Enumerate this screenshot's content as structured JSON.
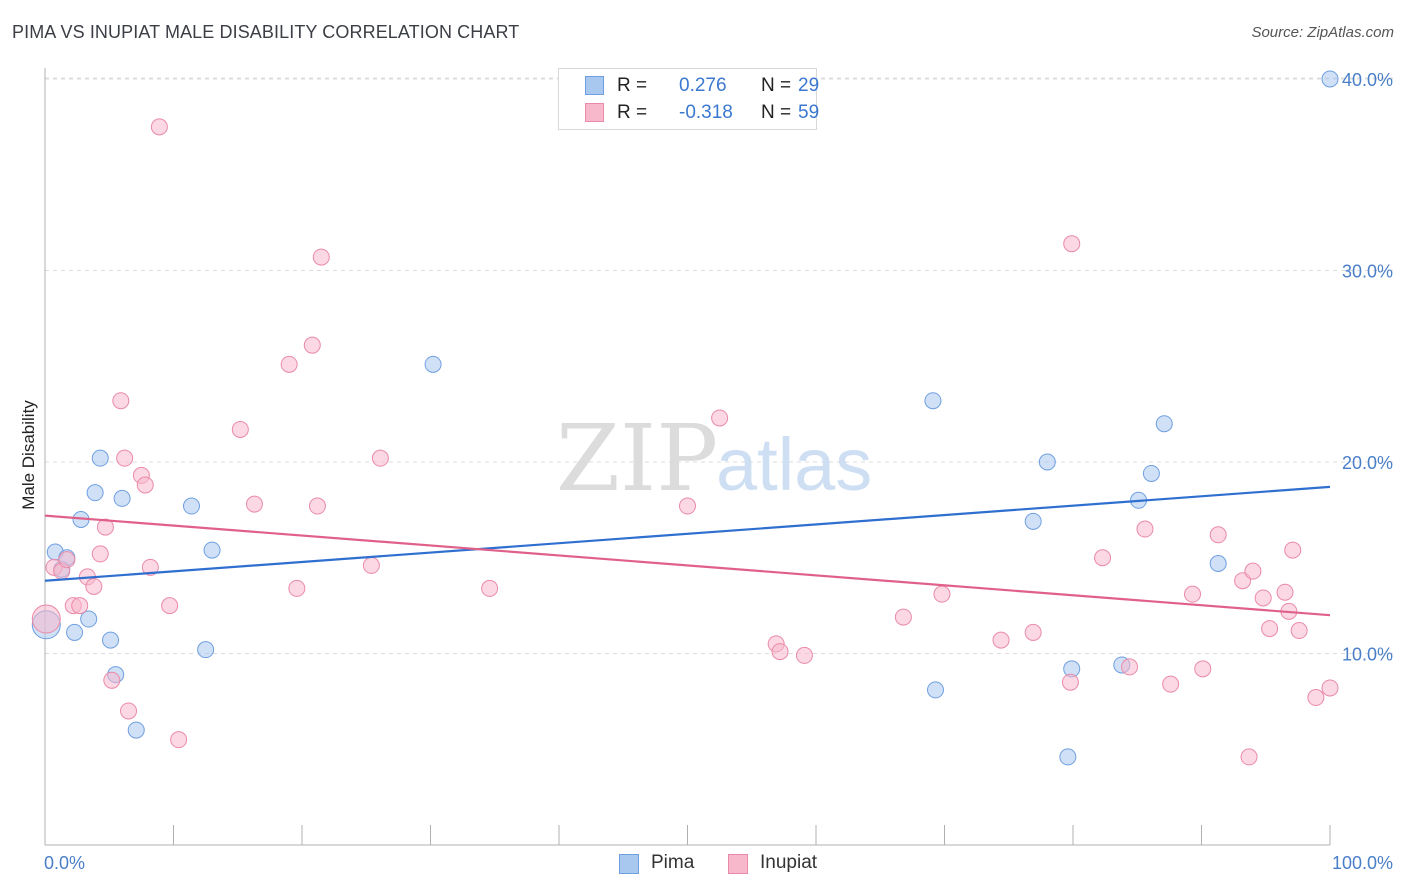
{
  "header": {
    "title": "PIMA VS INUPIAT MALE DISABILITY CORRELATION CHART",
    "source": "Source: ZipAtlas.com"
  },
  "stats": [
    {
      "r_label": "R =",
      "r_value": "0.276",
      "n_label": "N =",
      "n_value": "29",
      "color": "#a9c8f0"
    },
    {
      "r_label": "R =",
      "r_value": "-0.318",
      "n_label": "N =",
      "n_value": "59",
      "color": "#f7b8cc"
    }
  ],
  "watermark": {
    "zip": "ZIP",
    "atlas": "atlas"
  },
  "legend": {
    "pima": "Pima",
    "inupiat": "Inupiat"
  },
  "colors": {
    "pima_fill": "#a9c8f0",
    "pima_stroke": "#6f9fe0",
    "pima_line": "#2f6fd0",
    "inupiat_fill": "#f7b8cc",
    "inupiat_stroke": "#ea8aa8",
    "inupiat_line": "#e0608a",
    "tick_text": "#4a7fc8",
    "grid": "#dcdcdc"
  },
  "chart_data": {
    "type": "scatter",
    "title": "PIMA VS INUPIAT MALE DISABILITY CORRELATION CHART",
    "xlabel": "",
    "ylabel": "Male Disability",
    "xlim": [
      0,
      100
    ],
    "ylim": [
      0,
      42
    ],
    "x_tick_labels": [
      "0.0%",
      "100.0%"
    ],
    "y_ticks": [
      10,
      20,
      30,
      40
    ],
    "y_tick_labels": [
      "10.0%",
      "20.0%",
      "30.0%",
      "40.0%"
    ],
    "grid": true,
    "legend_position": "bottom-center",
    "series": [
      {
        "name": "Pima",
        "points": [
          [
            0.1,
            11.5
          ],
          [
            0.8,
            15.3
          ],
          [
            1.3,
            14.4
          ],
          [
            1.7,
            15.0
          ],
          [
            2.3,
            11.1
          ],
          [
            2.8,
            17.0
          ],
          [
            3.4,
            11.8
          ],
          [
            3.9,
            18.4
          ],
          [
            4.3,
            20.2
          ],
          [
            5.1,
            10.7
          ],
          [
            5.5,
            8.9
          ],
          [
            6.0,
            18.1
          ],
          [
            7.1,
            6.0
          ],
          [
            11.4,
            17.7
          ],
          [
            12.5,
            10.2
          ],
          [
            13.0,
            15.4
          ],
          [
            30.2,
            25.1
          ],
          [
            69.1,
            23.2
          ],
          [
            69.3,
            8.1
          ],
          [
            76.9,
            16.9
          ],
          [
            78.0,
            20.0
          ],
          [
            79.6,
            4.6
          ],
          [
            79.9,
            9.2
          ],
          [
            83.8,
            9.4
          ],
          [
            85.1,
            18.0
          ],
          [
            86.1,
            19.4
          ],
          [
            87.1,
            22.0
          ],
          [
            91.3,
            14.7
          ],
          [
            100.0,
            40.0
          ]
        ],
        "trend": {
          "x": [
            0,
            100
          ],
          "y": [
            13.8,
            18.7
          ]
        }
      },
      {
        "name": "Inupiat",
        "points": [
          [
            0.1,
            11.8
          ],
          [
            0.7,
            14.5
          ],
          [
            1.3,
            14.3
          ],
          [
            1.7,
            14.9
          ],
          [
            2.2,
            12.5
          ],
          [
            2.7,
            12.5
          ],
          [
            3.3,
            14.0
          ],
          [
            3.8,
            13.5
          ],
          [
            4.3,
            15.2
          ],
          [
            4.7,
            16.6
          ],
          [
            5.2,
            8.6
          ],
          [
            5.9,
            23.2
          ],
          [
            6.2,
            20.2
          ],
          [
            6.5,
            7.0
          ],
          [
            7.5,
            19.3
          ],
          [
            7.8,
            18.8
          ],
          [
            8.2,
            14.5
          ],
          [
            8.9,
            37.5
          ],
          [
            9.7,
            12.5
          ],
          [
            10.4,
            5.5
          ],
          [
            15.2,
            21.7
          ],
          [
            16.3,
            17.8
          ],
          [
            19.0,
            25.1
          ],
          [
            19.6,
            13.4
          ],
          [
            20.8,
            26.1
          ],
          [
            21.2,
            17.7
          ],
          [
            21.5,
            30.7
          ],
          [
            25.4,
            14.6
          ],
          [
            26.1,
            20.2
          ],
          [
            34.6,
            13.4
          ],
          [
            50.0,
            17.7
          ],
          [
            52.5,
            22.3
          ],
          [
            56.9,
            10.5
          ],
          [
            57.2,
            10.1
          ],
          [
            59.1,
            9.9
          ],
          [
            66.8,
            11.9
          ],
          [
            69.8,
            13.1
          ],
          [
            74.4,
            10.7
          ],
          [
            76.9,
            11.1
          ],
          [
            79.8,
            8.5
          ],
          [
            79.9,
            31.4
          ],
          [
            82.3,
            15.0
          ],
          [
            84.4,
            9.3
          ],
          [
            85.6,
            16.5
          ],
          [
            87.6,
            8.4
          ],
          [
            89.3,
            13.1
          ],
          [
            90.1,
            9.2
          ],
          [
            91.3,
            16.2
          ],
          [
            93.2,
            13.8
          ],
          [
            93.7,
            4.6
          ],
          [
            94.0,
            14.3
          ],
          [
            94.8,
            12.9
          ],
          [
            95.3,
            11.3
          ],
          [
            96.5,
            13.2
          ],
          [
            96.8,
            12.2
          ],
          [
            97.1,
            15.4
          ],
          [
            97.6,
            11.2
          ],
          [
            98.9,
            7.7
          ],
          [
            100.0,
            8.2
          ]
        ],
        "trend": {
          "x": [
            0,
            100
          ],
          "y": [
            17.2,
            12.0
          ]
        }
      }
    ]
  }
}
